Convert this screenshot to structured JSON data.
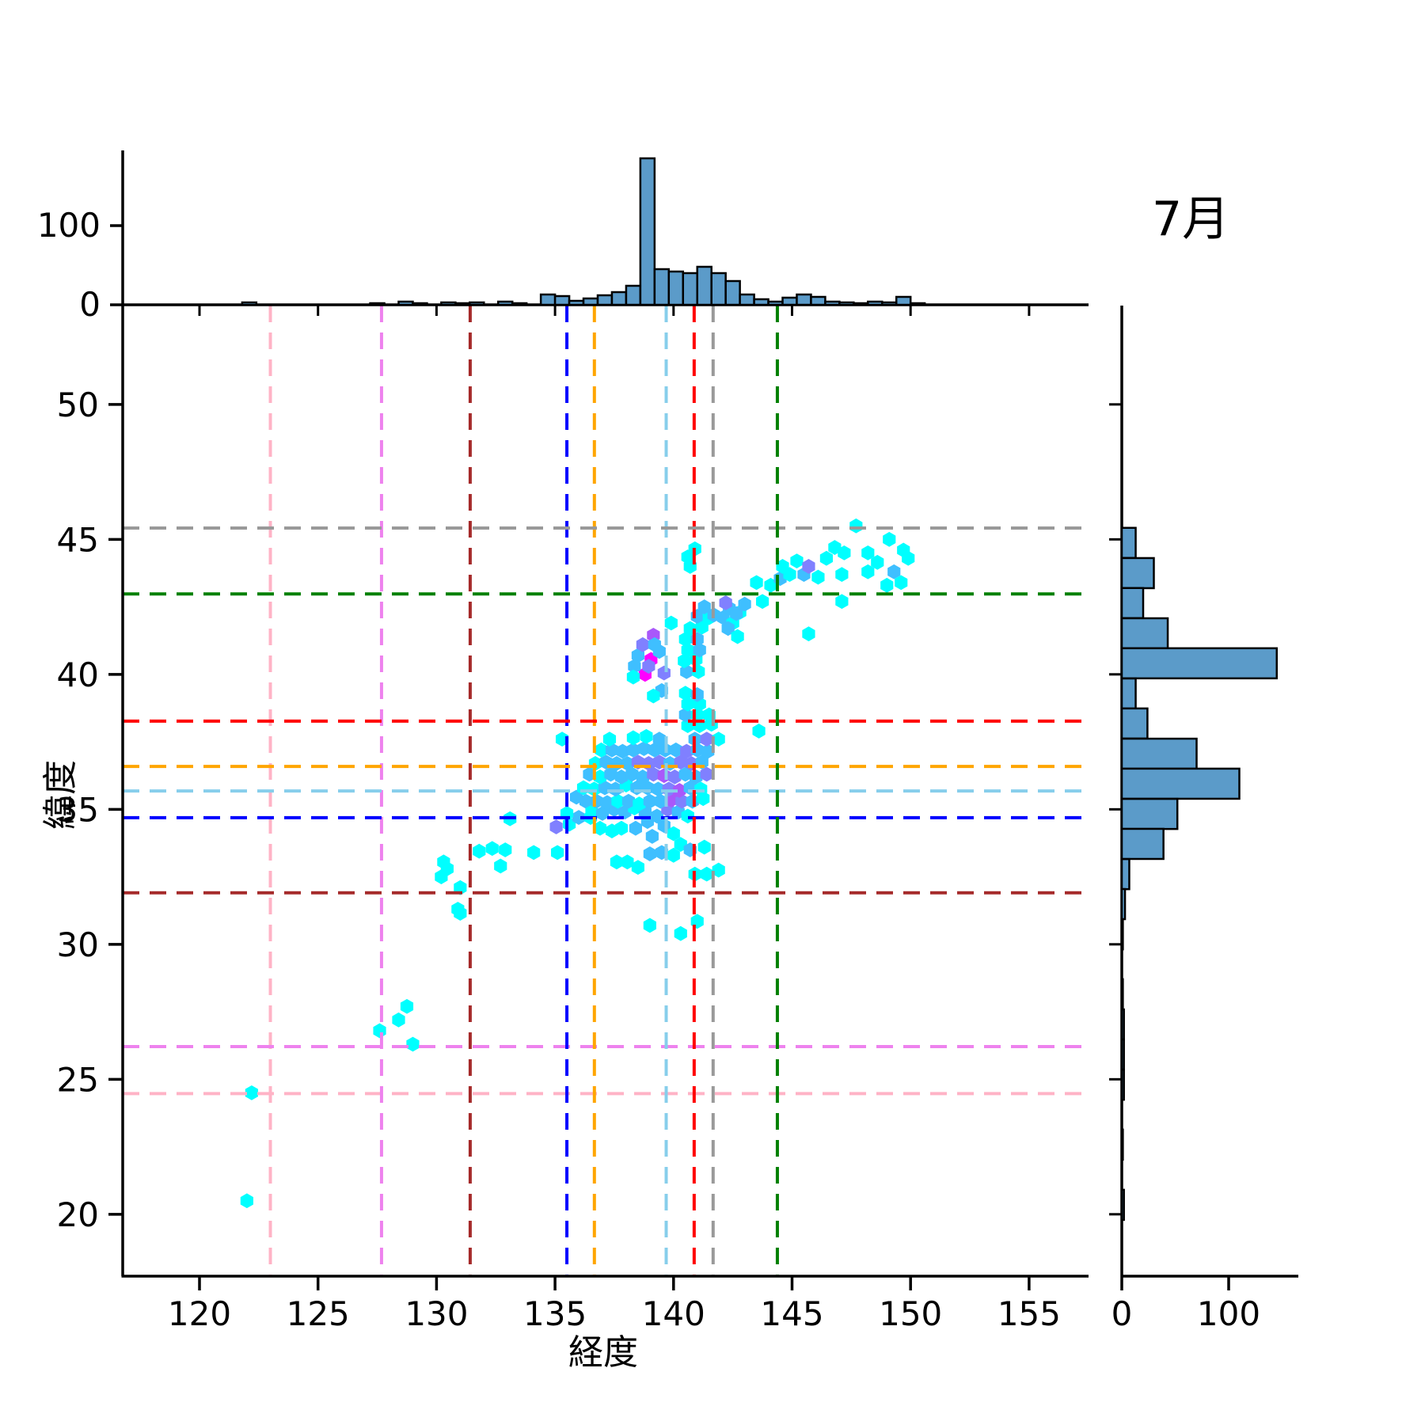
{
  "chart_data": {
    "type": "hexbin",
    "title": "7月",
    "xlabel": "経度",
    "ylabel": "緯度",
    "axes": {
      "x_ticks": [
        120,
        125,
        130,
        135,
        140,
        145,
        150,
        155
      ],
      "y_ticks": [
        50,
        45,
        40,
        35,
        30,
        25,
        20
      ],
      "xlim": [
        116.8,
        157.5
      ],
      "ylim": [
        17.7,
        53.6
      ],
      "top_hist_y_ticks": [
        100,
        0
      ],
      "right_hist_x_ticks": [
        0,
        100
      ]
    },
    "colormap": {
      "name": "cool",
      "levels": [
        "#00ffff",
        "#3fbfff",
        "#8080ff",
        "#a958fa",
        "#ff00ff"
      ]
    },
    "hist_style": {
      "fill": "#5b9bc9",
      "edge": "#000000"
    },
    "reference_lines": [
      {
        "name": "pink",
        "color": "#ffb3c6",
        "lon": 122.99,
        "lat": 24.47
      },
      {
        "name": "violet",
        "color": "#ee82ee",
        "lon": 127.68,
        "lat": 26.21
      },
      {
        "name": "dark-red",
        "color": "#a52a2a",
        "lon": 131.42,
        "lat": 31.91
      },
      {
        "name": "blue",
        "color": "#0000ff",
        "lon": 135.5,
        "lat": 34.69
      },
      {
        "name": "orange",
        "color": "#ffa500",
        "lon": 136.66,
        "lat": 36.59
      },
      {
        "name": "light-blue",
        "color": "#87ceeb",
        "lon": 139.69,
        "lat": 35.68
      },
      {
        "name": "red",
        "color": "#ff0000",
        "lon": 140.87,
        "lat": 38.27
      },
      {
        "name": "gray",
        "color": "#999999",
        "lon": 141.67,
        "lat": 45.42
      },
      {
        "name": "green",
        "color": "#008000",
        "lon": 144.38,
        "lat": 42.98
      }
    ],
    "top_histogram": {
      "bin_width": 0.6,
      "bins": [
        [
          122.1,
          3
        ],
        [
          127.5,
          2
        ],
        [
          128.7,
          4
        ],
        [
          129.3,
          2
        ],
        [
          130.5,
          3
        ],
        [
          131.1,
          2
        ],
        [
          131.7,
          3
        ],
        [
          132.9,
          4
        ],
        [
          133.5,
          2
        ],
        [
          134.7,
          13
        ],
        [
          135.3,
          11
        ],
        [
          135.9,
          5
        ],
        [
          136.5,
          8
        ],
        [
          137.1,
          12
        ],
        [
          137.7,
          16
        ],
        [
          138.3,
          24
        ],
        [
          138.9,
          185
        ],
        [
          139.5,
          45
        ],
        [
          140.1,
          42
        ],
        [
          140.7,
          40
        ],
        [
          141.3,
          48
        ],
        [
          141.9,
          40
        ],
        [
          142.5,
          30
        ],
        [
          143.1,
          13
        ],
        [
          143.7,
          7
        ],
        [
          144.3,
          4
        ],
        [
          144.9,
          9
        ],
        [
          145.5,
          13
        ],
        [
          146.1,
          10
        ],
        [
          146.7,
          4
        ],
        [
          147.3,
          3
        ],
        [
          147.9,
          2
        ],
        [
          148.5,
          4
        ],
        [
          149.1,
          3
        ],
        [
          149.7,
          10
        ],
        [
          150.3,
          2
        ]
      ]
    },
    "right_histogram": {
      "bin_width": 1.115,
      "bins": [
        [
          44.87,
          13
        ],
        [
          43.75,
          30
        ],
        [
          42.64,
          20
        ],
        [
          41.52,
          43
        ],
        [
          40.41,
          145
        ],
        [
          39.29,
          13
        ],
        [
          38.18,
          24
        ],
        [
          37.06,
          70
        ],
        [
          35.95,
          110
        ],
        [
          34.83,
          52
        ],
        [
          33.72,
          39
        ],
        [
          32.6,
          7
        ],
        [
          31.49,
          3
        ],
        [
          30.37,
          1
        ],
        [
          28.15,
          1
        ],
        [
          27.03,
          2
        ],
        [
          25.92,
          2
        ],
        [
          24.8,
          2
        ],
        [
          22.58,
          1
        ],
        [
          20.35,
          2
        ]
      ]
    },
    "hexbin_points": [
      [
        122.0,
        20.5,
        0
      ],
      [
        122.2,
        24.5,
        0
      ],
      [
        127.6,
        26.8,
        0
      ],
      [
        128.4,
        27.2,
        0
      ],
      [
        128.75,
        27.7,
        0
      ],
      [
        129.0,
        26.3,
        0
      ],
      [
        130.9,
        31.3,
        0
      ],
      [
        131.0,
        32.1,
        0
      ],
      [
        131.0,
        31.15,
        0
      ],
      [
        130.3,
        33.05,
        0
      ],
      [
        130.45,
        32.8,
        0
      ],
      [
        130.2,
        32.5,
        0
      ],
      [
        131.8,
        33.45,
        0
      ],
      [
        132.35,
        33.55,
        0
      ],
      [
        132.9,
        33.5,
        0
      ],
      [
        132.7,
        32.9,
        0
      ],
      [
        133.1,
        34.65,
        0
      ],
      [
        134.1,
        33.4,
        0
      ],
      [
        135.1,
        33.4,
        0
      ],
      [
        135.05,
        34.35,
        2
      ],
      [
        135.6,
        34.45,
        0
      ],
      [
        136.0,
        34.7,
        1
      ],
      [
        135.9,
        35.45,
        1
      ],
      [
        136.3,
        35.3,
        1
      ],
      [
        136.55,
        34.9,
        0
      ],
      [
        137.6,
        33.05,
        0
      ],
      [
        138.05,
        33.05,
        0
      ],
      [
        138.5,
        32.85,
        0
      ],
      [
        139.0,
        33.35,
        1
      ],
      [
        139.5,
        33.4,
        1
      ],
      [
        140.0,
        33.3,
        0
      ],
      [
        140.3,
        33.7,
        0
      ],
      [
        140.7,
        33.5,
        1
      ],
      [
        141.3,
        33.6,
        0
      ],
      [
        140.9,
        32.6,
        0
      ],
      [
        141.4,
        32.6,
        0
      ],
      [
        141.9,
        32.75,
        0
      ],
      [
        139.0,
        30.7,
        0
      ],
      [
        140.3,
        30.4,
        0
      ],
      [
        141.0,
        30.85,
        0
      ],
      [
        136.9,
        34.3,
        0
      ],
      [
        137.4,
        34.2,
        0
      ],
      [
        137.8,
        34.3,
        0
      ],
      [
        138.4,
        34.3,
        1
      ],
      [
        138.9,
        34.55,
        1
      ],
      [
        139.1,
        34.0,
        1
      ],
      [
        139.6,
        34.4,
        1
      ],
      [
        140.0,
        34.1,
        0
      ],
      [
        135.5,
        34.85,
        0
      ],
      [
        136.5,
        34.7,
        0
      ],
      [
        137.0,
        34.85,
        1
      ],
      [
        137.5,
        35.0,
        1
      ],
      [
        137.95,
        34.9,
        1
      ],
      [
        138.35,
        35.05,
        0
      ],
      [
        138.8,
        34.9,
        1
      ],
      [
        139.3,
        34.75,
        1
      ],
      [
        139.75,
        35.0,
        2
      ],
      [
        140.2,
        34.9,
        1
      ],
      [
        140.6,
        34.75,
        0
      ],
      [
        136.75,
        35.3,
        1
      ],
      [
        137.2,
        35.25,
        1
      ],
      [
        137.65,
        35.3,
        0
      ],
      [
        138.1,
        35.3,
        1
      ],
      [
        138.55,
        35.2,
        0
      ],
      [
        139.0,
        35.3,
        1
      ],
      [
        139.45,
        35.3,
        1
      ],
      [
        139.9,
        35.35,
        3
      ],
      [
        140.35,
        35.3,
        2
      ],
      [
        140.8,
        35.3,
        1
      ],
      [
        141.25,
        35.4,
        0
      ],
      [
        136.2,
        35.8,
        0
      ],
      [
        136.65,
        35.75,
        0
      ],
      [
        137.1,
        35.8,
        1
      ],
      [
        137.55,
        35.75,
        1
      ],
      [
        138.0,
        35.9,
        0
      ],
      [
        138.45,
        35.8,
        1
      ],
      [
        138.9,
        35.8,
        1
      ],
      [
        139.35,
        35.75,
        1
      ],
      [
        139.8,
        35.75,
        2
      ],
      [
        140.25,
        35.7,
        3
      ],
      [
        140.7,
        35.8,
        1
      ],
      [
        141.15,
        35.75,
        0
      ],
      [
        136.45,
        36.3,
        1
      ],
      [
        136.9,
        36.2,
        0
      ],
      [
        137.35,
        36.3,
        1
      ],
      [
        137.8,
        36.2,
        1
      ],
      [
        138.25,
        36.3,
        1
      ],
      [
        138.7,
        36.2,
        1
      ],
      [
        139.15,
        36.3,
        2
      ],
      [
        139.6,
        36.25,
        3
      ],
      [
        140.05,
        36.2,
        2
      ],
      [
        140.5,
        36.3,
        1
      ],
      [
        140.95,
        36.2,
        1
      ],
      [
        141.4,
        36.3,
        2
      ],
      [
        136.7,
        36.7,
        0
      ],
      [
        137.15,
        36.75,
        1
      ],
      [
        137.6,
        36.7,
        1
      ],
      [
        138.05,
        36.7,
        1
      ],
      [
        138.5,
        36.75,
        2
      ],
      [
        138.95,
        36.7,
        2
      ],
      [
        139.4,
        36.75,
        2
      ],
      [
        139.85,
        36.7,
        1
      ],
      [
        140.3,
        36.75,
        2
      ],
      [
        140.75,
        36.7,
        2
      ],
      [
        141.2,
        36.75,
        1
      ],
      [
        136.95,
        37.2,
        0
      ],
      [
        137.4,
        37.2,
        1
      ],
      [
        137.85,
        37.15,
        1
      ],
      [
        138.3,
        37.2,
        1
      ],
      [
        138.75,
        37.25,
        1
      ],
      [
        139.2,
        37.2,
        1
      ],
      [
        139.65,
        37.2,
        1
      ],
      [
        140.1,
        37.2,
        1
      ],
      [
        140.55,
        37.15,
        2
      ],
      [
        141.0,
        37.2,
        1
      ],
      [
        141.45,
        37.15,
        1
      ],
      [
        135.3,
        37.6,
        0
      ],
      [
        137.3,
        37.6,
        0
      ],
      [
        138.3,
        37.65,
        0
      ],
      [
        138.85,
        37.7,
        0
      ],
      [
        139.4,
        37.6,
        1
      ],
      [
        140.9,
        37.6,
        1
      ],
      [
        141.4,
        37.6,
        2
      ],
      [
        141.9,
        37.6,
        0
      ],
      [
        143.6,
        37.9,
        0
      ],
      [
        140.6,
        38.1,
        0
      ],
      [
        141.1,
        38.1,
        0
      ],
      [
        141.6,
        38.15,
        0
      ],
      [
        140.5,
        38.5,
        1
      ],
      [
        141.0,
        38.5,
        0
      ],
      [
        141.5,
        38.5,
        0
      ],
      [
        140.6,
        38.9,
        0
      ],
      [
        141.1,
        38.9,
        0
      ],
      [
        140.5,
        39.3,
        0
      ],
      [
        141.0,
        39.25,
        1
      ],
      [
        139.5,
        39.4,
        1
      ],
      [
        139.15,
        39.2,
        0
      ],
      [
        138.8,
        40.0,
        4
      ],
      [
        139.05,
        40.55,
        4
      ],
      [
        139.6,
        40.05,
        2
      ],
      [
        139.4,
        40.85,
        1
      ],
      [
        138.5,
        40.7,
        1
      ],
      [
        138.35,
        40.3,
        1
      ],
      [
        138.95,
        40.3,
        2
      ],
      [
        138.7,
        41.1,
        2
      ],
      [
        139.15,
        41.45,
        3
      ],
      [
        139.2,
        41.1,
        1
      ],
      [
        138.3,
        39.9,
        0
      ],
      [
        139.9,
        41.9,
        0
      ],
      [
        140.55,
        40.1,
        1
      ],
      [
        141.05,
        40.1,
        0
      ],
      [
        140.45,
        40.5,
        0
      ],
      [
        140.95,
        40.55,
        0
      ],
      [
        140.6,
        40.9,
        0
      ],
      [
        141.1,
        40.9,
        1
      ],
      [
        140.5,
        41.3,
        0
      ],
      [
        141.0,
        41.3,
        1
      ],
      [
        140.7,
        41.7,
        0
      ],
      [
        141.2,
        41.75,
        0
      ],
      [
        141.0,
        42.15,
        1
      ],
      [
        141.5,
        42.1,
        0
      ],
      [
        145.7,
        41.5,
        0
      ],
      [
        141.3,
        42.5,
        1
      ],
      [
        141.7,
        42.2,
        1
      ],
      [
        142.1,
        42.1,
        1
      ],
      [
        142.5,
        41.9,
        0
      ],
      [
        142.35,
        42.45,
        1
      ],
      [
        142.8,
        42.3,
        0
      ],
      [
        142.2,
        42.65,
        2
      ],
      [
        142.65,
        42.25,
        1
      ],
      [
        143.0,
        42.6,
        1
      ],
      [
        142.3,
        41.7,
        1
      ],
      [
        142.7,
        41.4,
        0
      ],
      [
        143.5,
        43.4,
        0
      ],
      [
        143.75,
        42.7,
        0
      ],
      [
        140.6,
        44.35,
        0
      ],
      [
        140.9,
        44.65,
        0
      ],
      [
        140.7,
        44.0,
        0
      ],
      [
        144.1,
        43.3,
        0
      ],
      [
        144.5,
        43.55,
        1
      ],
      [
        144.9,
        43.7,
        0
      ],
      [
        145.5,
        43.7,
        1
      ],
      [
        146.1,
        43.6,
        0
      ],
      [
        145.2,
        44.2,
        0
      ],
      [
        145.7,
        44.0,
        2
      ],
      [
        144.6,
        44.0,
        0
      ],
      [
        146.45,
        44.3,
        0
      ],
      [
        146.8,
        44.7,
        0
      ],
      [
        147.2,
        44.5,
        0
      ],
      [
        148.2,
        44.5,
        0
      ],
      [
        147.7,
        45.5,
        0
      ],
      [
        149.1,
        45.0,
        0
      ],
      [
        149.7,
        44.6,
        0
      ],
      [
        149.9,
        44.3,
        0
      ],
      [
        147.1,
        43.7,
        0
      ],
      [
        148.2,
        43.8,
        0
      ],
      [
        149.3,
        43.8,
        1
      ],
      [
        149.6,
        43.4,
        0
      ],
      [
        149.0,
        43.3,
        0
      ],
      [
        147.1,
        42.7,
        0
      ],
      [
        148.6,
        44.15,
        0
      ]
    ]
  }
}
